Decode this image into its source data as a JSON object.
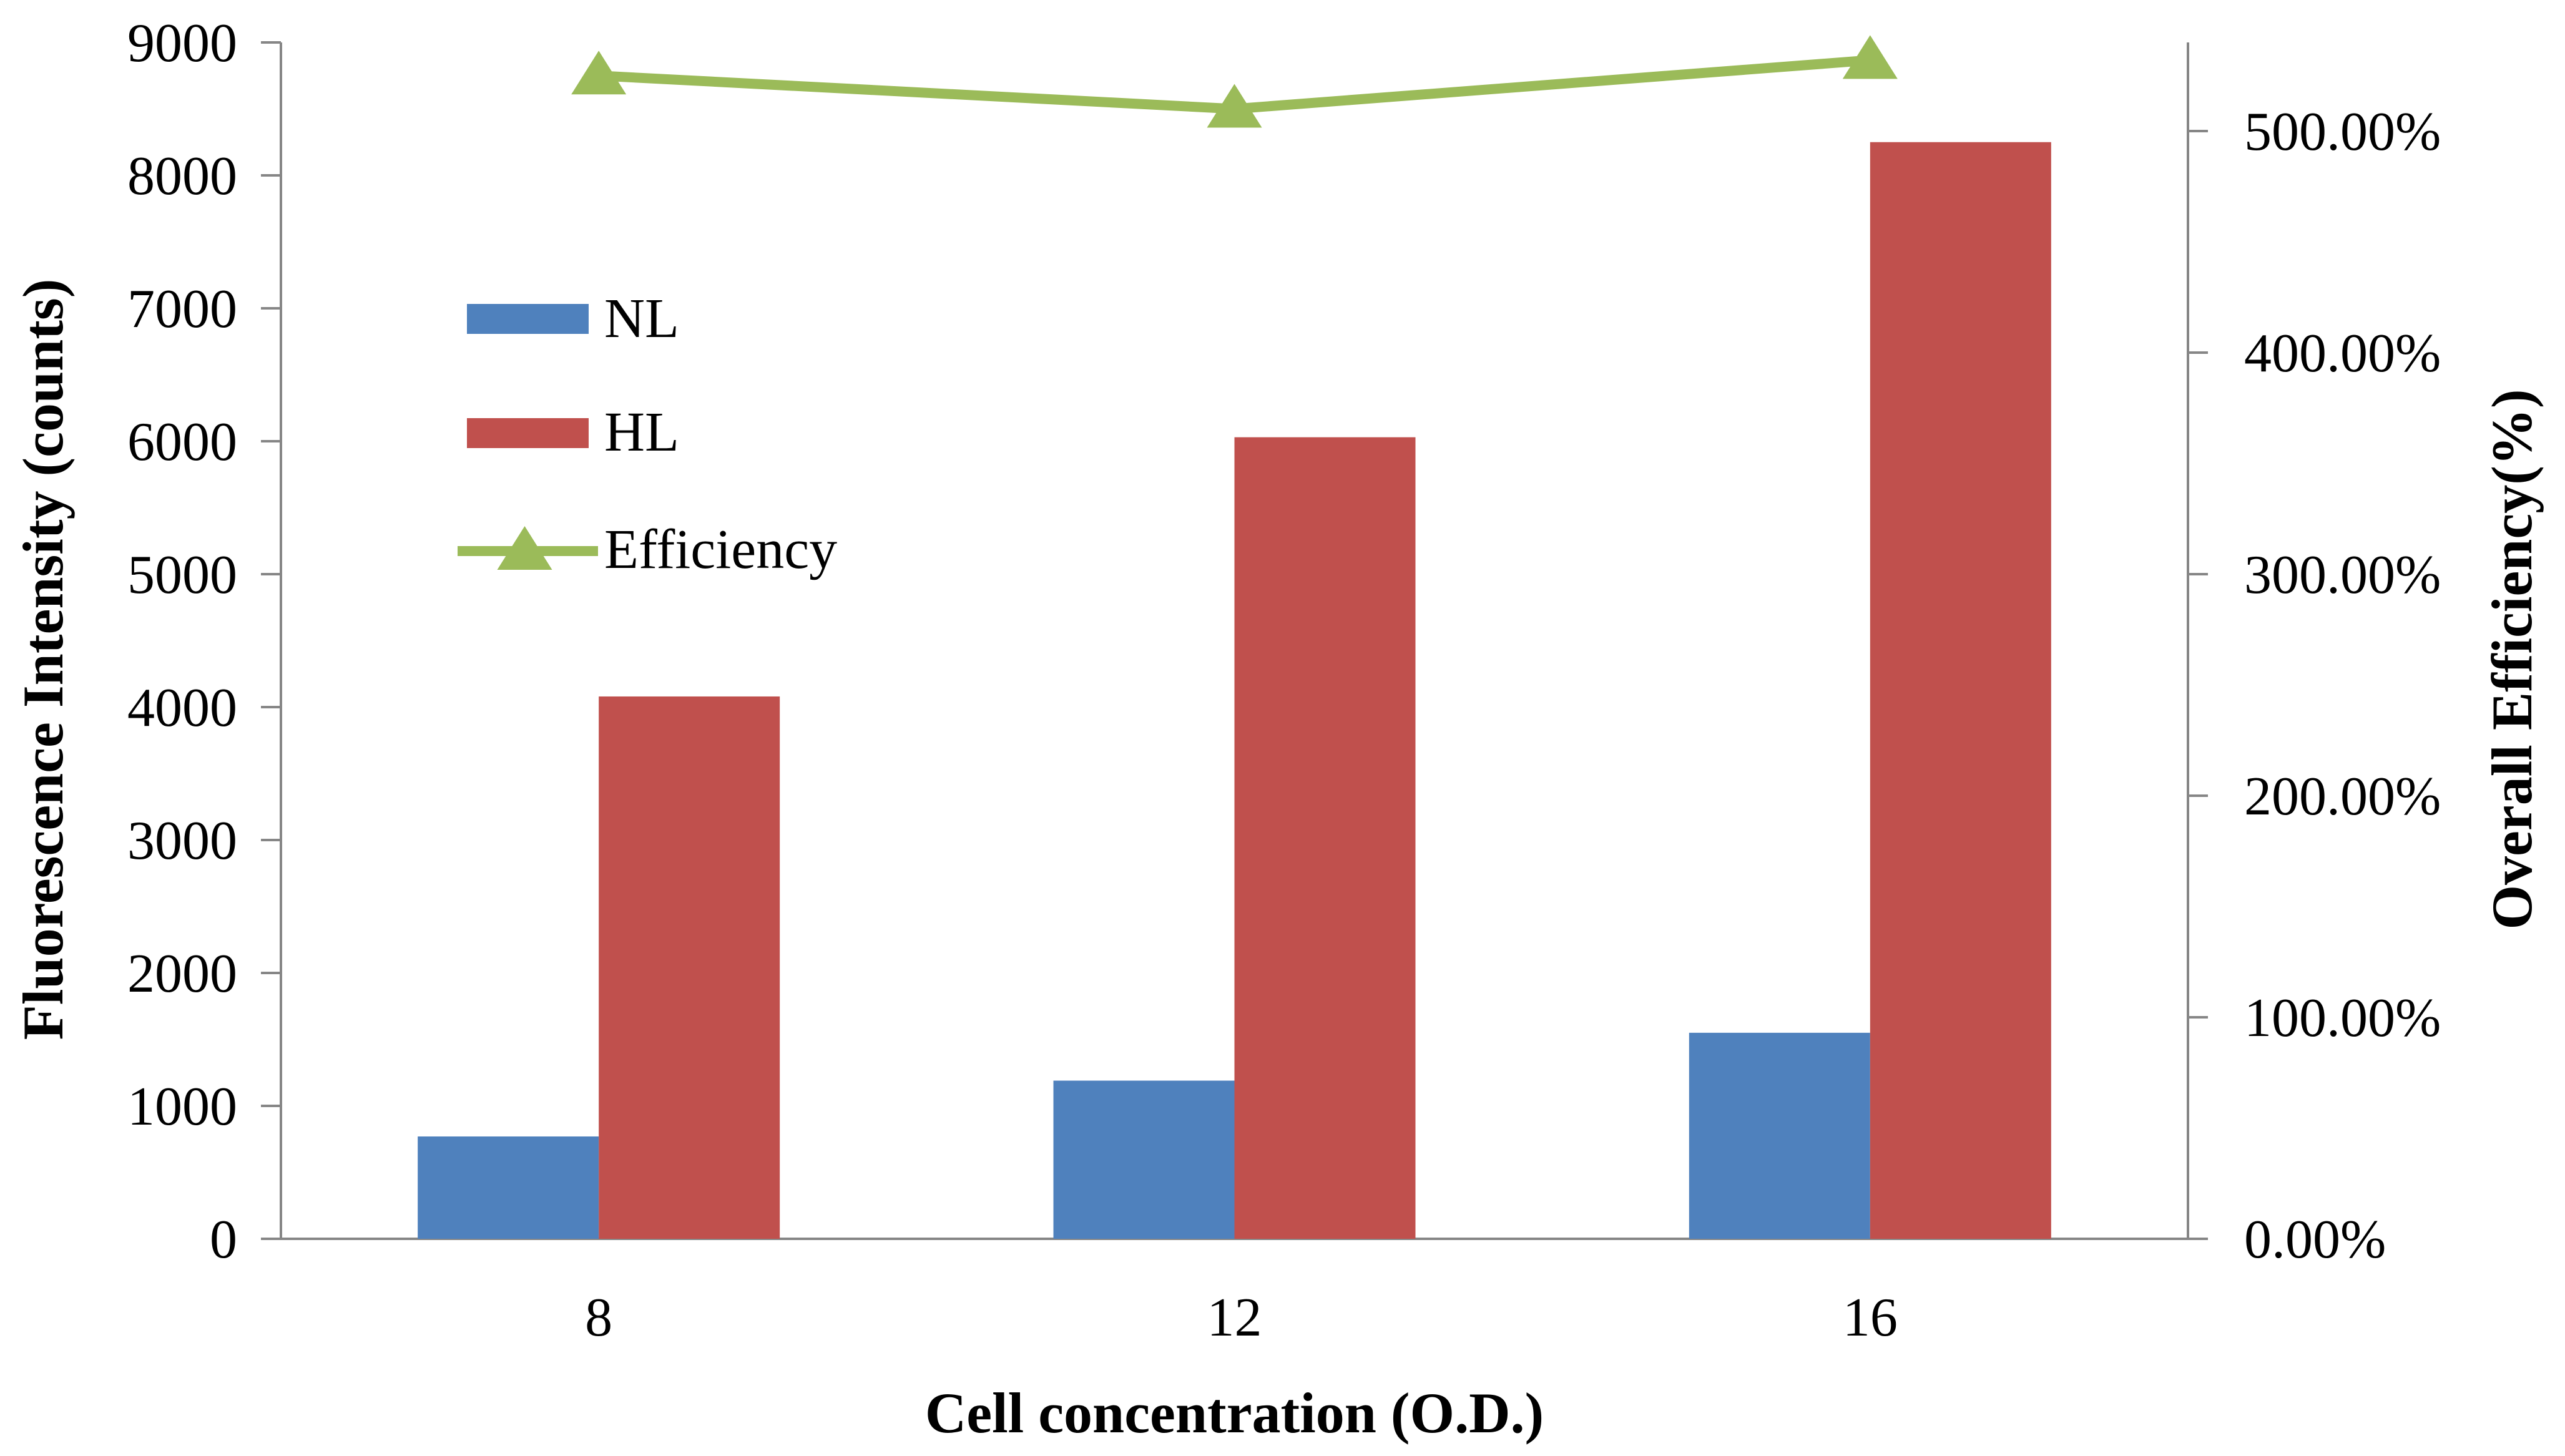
{
  "chart_data": {
    "type": "bar",
    "categories": [
      "8",
      "12",
      "16"
    ],
    "xlabel": "Cell concentration (O.D.)",
    "ylabel": "Fluorescence Intensity (counts)",
    "y2label": "Overall Efficiency(%)",
    "ylim": [
      0,
      9000
    ],
    "y2lim": [
      0,
      5.4
    ],
    "y_ticks": [
      "0",
      "1000",
      "2000",
      "3000",
      "4000",
      "5000",
      "6000",
      "7000",
      "8000",
      "9000"
    ],
    "y2_ticks": [
      "0.00%",
      "100.00%",
      "200.00%",
      "300.00%",
      "400.00%",
      "500.00%"
    ],
    "grid": false,
    "legend_position": "upper-left",
    "series": [
      {
        "name": "NL",
        "type": "bar",
        "axis": "left",
        "color": "#4F81BD",
        "values": [
          770,
          1190,
          1550
        ]
      },
      {
        "name": "HL",
        "type": "bar",
        "axis": "left",
        "color": "#C0504D",
        "values": [
          4080,
          6030,
          8250
        ]
      },
      {
        "name": "Efficiency",
        "type": "line",
        "axis": "right",
        "marker": "triangle",
        "color": "#9BBB59",
        "values": [
          5.25,
          5.1,
          5.32
        ]
      }
    ]
  }
}
